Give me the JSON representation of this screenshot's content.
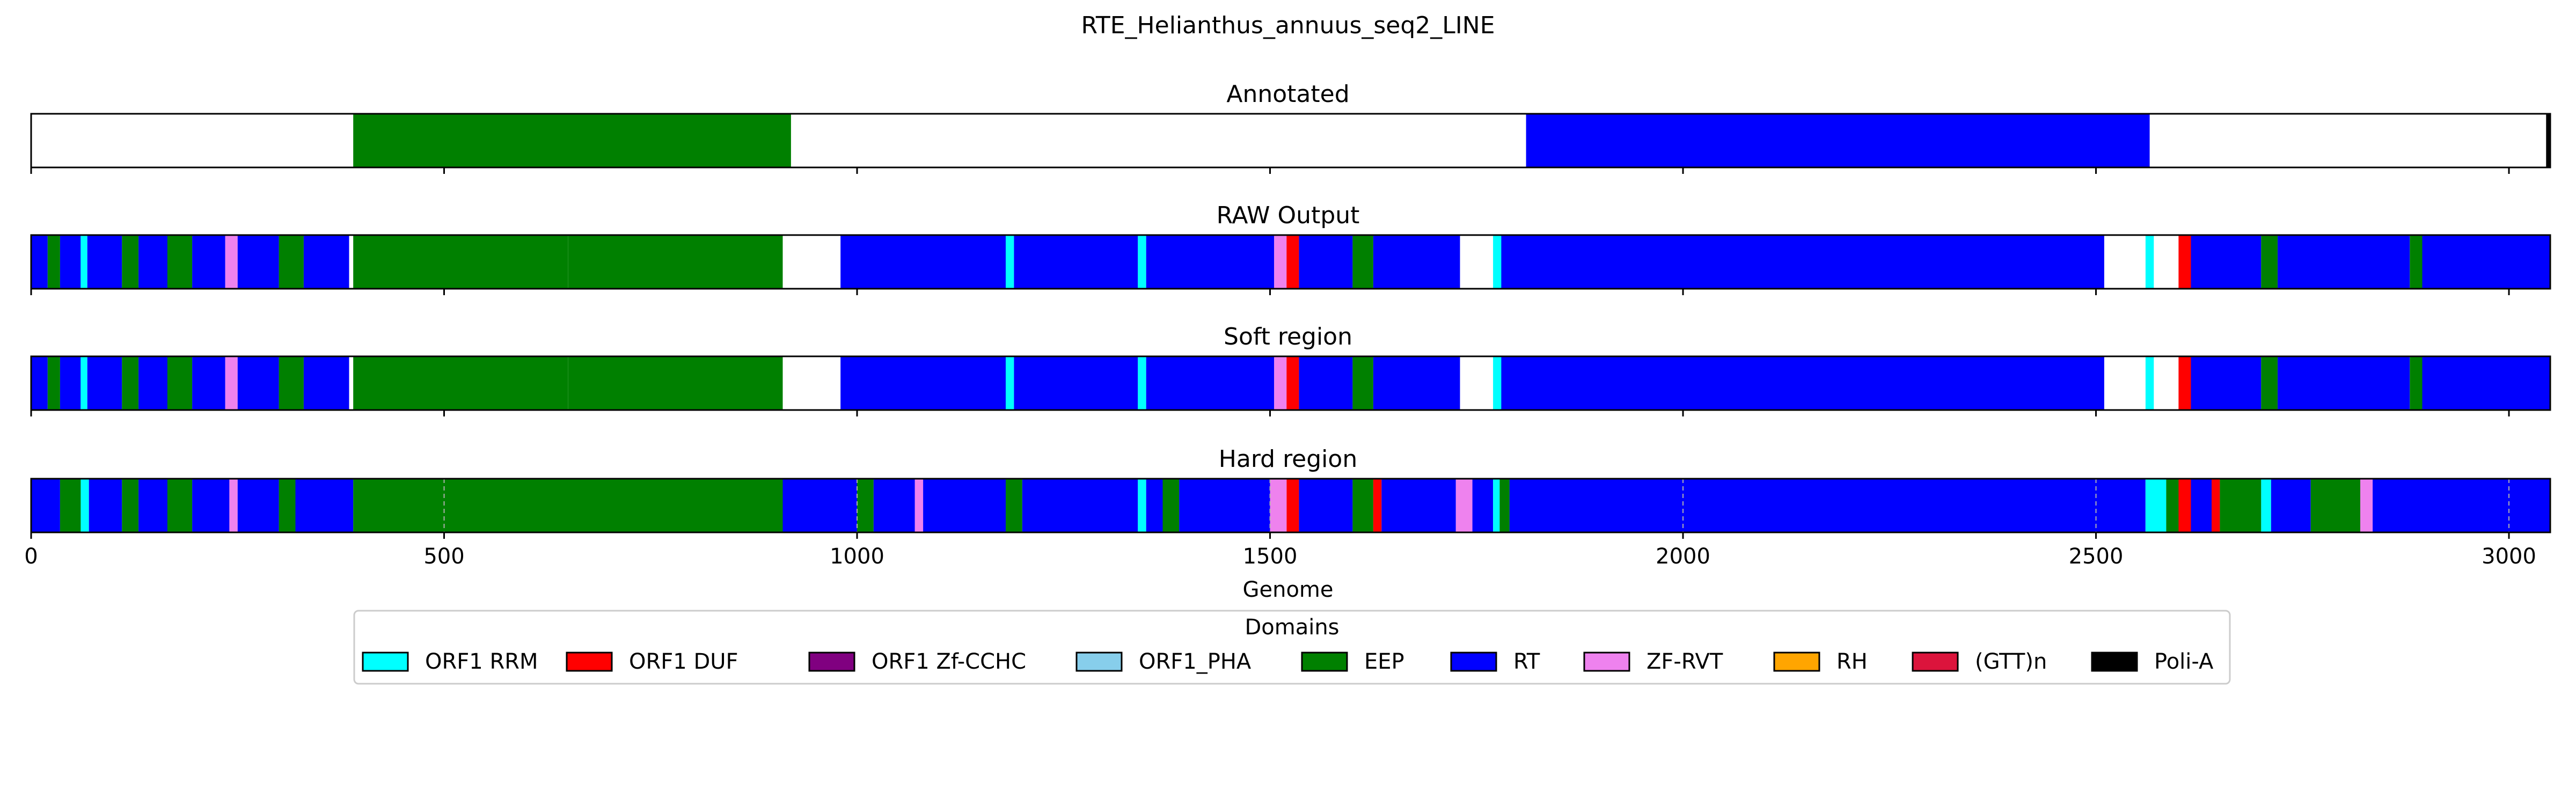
{
  "chart_data": {
    "type": "heatmap",
    "title": "RTE_Helianthus_annuus_seq2_LINE",
    "xlabel": "Genome",
    "xlim": [
      0,
      3050
    ],
    "xticks": [
      0,
      500,
      1000,
      1500,
      2000,
      2500,
      3000
    ],
    "tick_labels": [
      "0",
      "500",
      "1000",
      "1500",
      "2000",
      "2500",
      "3000"
    ],
    "grid": "dashed vertical at x ticks",
    "legend": {
      "title": "Domains",
      "placement": "bottom-center",
      "entries": [
        {
          "name": "ORF1 RRM",
          "color": "#00ffff"
        },
        {
          "name": "ORF1 DUF",
          "color": "#ff0000"
        },
        {
          "name": "ORF1 Zf-CCHC",
          "color": "#800080"
        },
        {
          "name": "ORF1_PHA",
          "color": "#87ceeb"
        },
        {
          "name": "EEP",
          "color": "#008000"
        },
        {
          "name": "RT",
          "color": "#0000ff"
        },
        {
          "name": "ZF-RVT",
          "color": "#ee82ee"
        },
        {
          "name": "RH",
          "color": "#ffa500"
        },
        {
          "name": "(GTT)n",
          "color": "#dc143c"
        },
        {
          "name": "Poli-A",
          "color": "#000000"
        }
      ]
    },
    "tracks": [
      {
        "title": "Annotated",
        "segments": [
          {
            "domain": "EEP",
            "start": 390,
            "end": 920
          },
          {
            "domain": "RT",
            "start": 1810,
            "end": 2565
          },
          {
            "domain": "Poli-A",
            "start": 3045,
            "end": 3050
          }
        ]
      },
      {
        "title": "RAW Output",
        "segments": [
          {
            "domain": "RT",
            "start": 0,
            "end": 20
          },
          {
            "domain": "EEP",
            "start": 20,
            "end": 35
          },
          {
            "domain": "RT",
            "start": 35,
            "end": 60
          },
          {
            "domain": "ORF1 RRM",
            "start": 60,
            "end": 68
          },
          {
            "domain": "RT",
            "start": 68,
            "end": 110
          },
          {
            "domain": "EEP",
            "start": 110,
            "end": 130
          },
          {
            "domain": "RT",
            "start": 130,
            "end": 165
          },
          {
            "domain": "EEP",
            "start": 165,
            "end": 195
          },
          {
            "domain": "RT",
            "start": 195,
            "end": 235
          },
          {
            "domain": "ZF-RVT",
            "start": 235,
            "end": 250
          },
          {
            "domain": "RT",
            "start": 250,
            "end": 300
          },
          {
            "domain": "EEP",
            "start": 300,
            "end": 330
          },
          {
            "domain": "RT",
            "start": 330,
            "end": 385
          },
          {
            "domain": "EEP",
            "start": 390,
            "end": 650
          },
          {
            "domain": "EEP",
            "start": 650,
            "end": 910
          },
          {
            "domain": "RT",
            "start": 980,
            "end": 1180
          },
          {
            "domain": "ORF1 RRM",
            "start": 1180,
            "end": 1190
          },
          {
            "domain": "RT",
            "start": 1190,
            "end": 1340
          },
          {
            "domain": "ORF1 RRM",
            "start": 1340,
            "end": 1350
          },
          {
            "domain": "RT",
            "start": 1350,
            "end": 1505
          },
          {
            "domain": "ZF-RVT",
            "start": 1505,
            "end": 1520
          },
          {
            "domain": "ORF1 DUF",
            "start": 1520,
            "end": 1535
          },
          {
            "domain": "RT",
            "start": 1535,
            "end": 1600
          },
          {
            "domain": "EEP",
            "start": 1600,
            "end": 1625
          },
          {
            "domain": "RT",
            "start": 1625,
            "end": 1730
          },
          {
            "domain": "ORF1 RRM",
            "start": 1770,
            "end": 1780
          },
          {
            "domain": "RT",
            "start": 1780,
            "end": 2510
          },
          {
            "domain": "ORF1 RRM",
            "start": 2560,
            "end": 2570
          },
          {
            "domain": "ORF1 DUF",
            "start": 2600,
            "end": 2615
          },
          {
            "domain": "RT",
            "start": 2615,
            "end": 2700
          },
          {
            "domain": "EEP",
            "start": 2700,
            "end": 2720
          },
          {
            "domain": "RT",
            "start": 2720,
            "end": 2880
          },
          {
            "domain": "EEP",
            "start": 2880,
            "end": 2895
          },
          {
            "domain": "RT",
            "start": 2895,
            "end": 3050
          }
        ]
      },
      {
        "title": "Soft region",
        "segments": [
          {
            "domain": "RT",
            "start": 0,
            "end": 20
          },
          {
            "domain": "EEP",
            "start": 20,
            "end": 35
          },
          {
            "domain": "RT",
            "start": 35,
            "end": 60
          },
          {
            "domain": "ORF1 RRM",
            "start": 60,
            "end": 68
          },
          {
            "domain": "RT",
            "start": 68,
            "end": 110
          },
          {
            "domain": "EEP",
            "start": 110,
            "end": 130
          },
          {
            "domain": "RT",
            "start": 130,
            "end": 165
          },
          {
            "domain": "EEP",
            "start": 165,
            "end": 195
          },
          {
            "domain": "RT",
            "start": 195,
            "end": 235
          },
          {
            "domain": "ZF-RVT",
            "start": 235,
            "end": 250
          },
          {
            "domain": "RT",
            "start": 250,
            "end": 300
          },
          {
            "domain": "EEP",
            "start": 300,
            "end": 330
          },
          {
            "domain": "RT",
            "start": 330,
            "end": 385
          },
          {
            "domain": "EEP",
            "start": 390,
            "end": 650
          },
          {
            "domain": "EEP",
            "start": 650,
            "end": 910
          },
          {
            "domain": "RT",
            "start": 980,
            "end": 1180
          },
          {
            "domain": "ORF1 RRM",
            "start": 1180,
            "end": 1190
          },
          {
            "domain": "RT",
            "start": 1190,
            "end": 1340
          },
          {
            "domain": "ORF1 RRM",
            "start": 1340,
            "end": 1350
          },
          {
            "domain": "RT",
            "start": 1350,
            "end": 1505
          },
          {
            "domain": "ZF-RVT",
            "start": 1505,
            "end": 1520
          },
          {
            "domain": "ORF1 DUF",
            "start": 1520,
            "end": 1535
          },
          {
            "domain": "RT",
            "start": 1535,
            "end": 1600
          },
          {
            "domain": "EEP",
            "start": 1600,
            "end": 1625
          },
          {
            "domain": "RT",
            "start": 1625,
            "end": 1730
          },
          {
            "domain": "ORF1 RRM",
            "start": 1770,
            "end": 1780
          },
          {
            "domain": "RT",
            "start": 1780,
            "end": 2510
          },
          {
            "domain": "ORF1 RRM",
            "start": 2560,
            "end": 2570
          },
          {
            "domain": "ORF1 DUF",
            "start": 2600,
            "end": 2615
          },
          {
            "domain": "RT",
            "start": 2615,
            "end": 2700
          },
          {
            "domain": "EEP",
            "start": 2700,
            "end": 2720
          },
          {
            "domain": "RT",
            "start": 2720,
            "end": 2880
          },
          {
            "domain": "EEP",
            "start": 2880,
            "end": 2895
          },
          {
            "domain": "RT",
            "start": 2895,
            "end": 3050
          }
        ]
      },
      {
        "title": "Hard region",
        "segments": [
          {
            "domain": "RT",
            "start": 0,
            "end": 35
          },
          {
            "domain": "ORF1 RRM",
            "start": 60,
            "end": 70
          },
          {
            "domain": "EEP",
            "start": 35,
            "end": 60
          },
          {
            "domain": "RT",
            "start": 70,
            "end": 110
          },
          {
            "domain": "EEP",
            "start": 110,
            "end": 130
          },
          {
            "domain": "RT",
            "start": 130,
            "end": 165
          },
          {
            "domain": "EEP",
            "start": 165,
            "end": 195
          },
          {
            "domain": "RT",
            "start": 195,
            "end": 240
          },
          {
            "domain": "ZF-RVT",
            "start": 240,
            "end": 250
          },
          {
            "domain": "RT",
            "start": 250,
            "end": 300
          },
          {
            "domain": "EEP",
            "start": 300,
            "end": 320
          },
          {
            "domain": "RT",
            "start": 320,
            "end": 390
          },
          {
            "domain": "EEP",
            "start": 390,
            "end": 910
          },
          {
            "domain": "RT",
            "start": 910,
            "end": 1000
          },
          {
            "domain": "EEP",
            "start": 1000,
            "end": 1020
          },
          {
            "domain": "RT",
            "start": 1020,
            "end": 1070
          },
          {
            "domain": "ZF-RVT",
            "start": 1070,
            "end": 1080
          },
          {
            "domain": "RT",
            "start": 1080,
            "end": 1180
          },
          {
            "domain": "EEP",
            "start": 1180,
            "end": 1200
          },
          {
            "domain": "RT",
            "start": 1200,
            "end": 1340
          },
          {
            "domain": "ORF1 RRM",
            "start": 1340,
            "end": 1350
          },
          {
            "domain": "RT",
            "start": 1350,
            "end": 1370
          },
          {
            "domain": "EEP",
            "start": 1370,
            "end": 1390
          },
          {
            "domain": "RT",
            "start": 1390,
            "end": 1500
          },
          {
            "domain": "ORF1 DUF",
            "start": 1520,
            "end": 1535
          },
          {
            "domain": "ZF-RVT",
            "start": 1500,
            "end": 1520
          },
          {
            "domain": "RT",
            "start": 1535,
            "end": 1600
          },
          {
            "domain": "EEP",
            "start": 1600,
            "end": 1625
          },
          {
            "domain": "ORF1 DUF",
            "start": 1625,
            "end": 1635
          },
          {
            "domain": "RT",
            "start": 1635,
            "end": 1725
          },
          {
            "domain": "ZF-RVT",
            "start": 1725,
            "end": 1745
          },
          {
            "domain": "RT",
            "start": 1745,
            "end": 1770
          },
          {
            "domain": "ORF1 RRM",
            "start": 1770,
            "end": 1778
          },
          {
            "domain": "EEP",
            "start": 1778,
            "end": 1790
          },
          {
            "domain": "RT",
            "start": 1790,
            "end": 2560
          },
          {
            "domain": "ORF1 RRM",
            "start": 2560,
            "end": 2585
          },
          {
            "domain": "EEP",
            "start": 2585,
            "end": 2600
          },
          {
            "domain": "ORF1 DUF",
            "start": 2600,
            "end": 2615
          },
          {
            "domain": "RT",
            "start": 2615,
            "end": 2640
          },
          {
            "domain": "ORF1 DUF",
            "start": 2640,
            "end": 2650
          },
          {
            "domain": "EEP",
            "start": 2650,
            "end": 2700
          },
          {
            "domain": "ORF1 RRM",
            "start": 2700,
            "end": 2712
          },
          {
            "domain": "RT",
            "start": 2712,
            "end": 2760
          },
          {
            "domain": "EEP",
            "start": 2760,
            "end": 2820
          },
          {
            "domain": "ZF-RVT",
            "start": 2820,
            "end": 2835
          },
          {
            "domain": "RT",
            "start": 2835,
            "end": 3050
          }
        ]
      }
    ]
  }
}
